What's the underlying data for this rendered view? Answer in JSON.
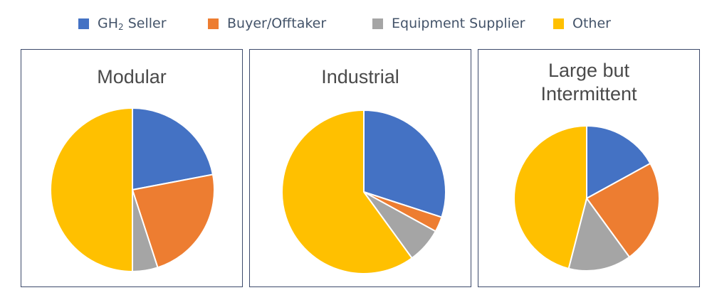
{
  "legend": {
    "seller": {
      "label_main": "GH",
      "label_sub": "2",
      "label_rest": " Seller",
      "color": "#4472C4"
    },
    "buyer": {
      "label": "Buyer/Offtaker",
      "color": "#ED7D31"
    },
    "equipment": {
      "label": "Equipment Supplier",
      "color": "#A5A5A5"
    },
    "other": {
      "label": "Other",
      "color": "#FFC000"
    }
  },
  "chart_data": [
    {
      "type": "pie",
      "title": "Modular",
      "categories": [
        "GH2 Seller",
        "Buyer/Offtaker",
        "Equipment Supplier",
        "Other"
      ],
      "values": [
        22,
        23,
        5,
        50
      ],
      "colors": [
        "#4472C4",
        "#ED7D31",
        "#A5A5A5",
        "#FFC000"
      ]
    },
    {
      "type": "pie",
      "title": "Industrial",
      "categories": [
        "GH2 Seller",
        "Buyer/Offtaker",
        "Equipment Supplier",
        "Other"
      ],
      "values": [
        30,
        3,
        7,
        60
      ],
      "colors": [
        "#4472C4",
        "#ED7D31",
        "#A5A5A5",
        "#FFC000"
      ]
    },
    {
      "type": "pie",
      "title": "Large but Intermittent",
      "title_lines": [
        "Large but",
        "Intermittent"
      ],
      "categories": [
        "GH2 Seller",
        "Buyer/Offtaker",
        "Equipment Supplier",
        "Other"
      ],
      "values": [
        17,
        23,
        14,
        46
      ],
      "colors": [
        "#4472C4",
        "#ED7D31",
        "#A5A5A5",
        "#FFC000"
      ]
    }
  ]
}
